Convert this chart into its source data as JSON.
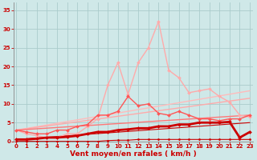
{
  "bg_color": "#cfe8e8",
  "grid_color": "#aacccc",
  "x_label": "Vent moyen/en rafales ( km/h )",
  "x_ticks": [
    0,
    1,
    2,
    3,
    4,
    5,
    6,
    7,
    8,
    9,
    10,
    11,
    12,
    13,
    14,
    15,
    16,
    17,
    18,
    19,
    20,
    21,
    22,
    23
  ],
  "ylim": [
    0,
    37
  ],
  "xlim": [
    -0.3,
    23.3
  ],
  "yticks": [
    0,
    5,
    10,
    15,
    20,
    25,
    30,
    35
  ],
  "tick_color": "#cc0000",
  "label_color": "#cc0000",
  "tick_fontsize": 5.0,
  "label_fontsize": 6.5,
  "series": [
    {
      "x": [
        0,
        1,
        2,
        3,
        4,
        5,
        6,
        7,
        8,
        9,
        10,
        11,
        12,
        13,
        14,
        15,
        16,
        17,
        18,
        19,
        20,
        21,
        22,
        23
      ],
      "y": [
        0.5,
        0.5,
        0.7,
        1,
        1,
        1.2,
        1.5,
        2,
        2.5,
        2.5,
        3,
        3.2,
        3.5,
        3.5,
        4,
        4,
        4.5,
        4.5,
        5,
        5,
        5,
        5.2,
        1,
        2.5
      ],
      "color": "#cc0000",
      "linewidth": 2.0,
      "marker": "D",
      "markersize": 2.0,
      "zorder": 6,
      "linestyle": "-"
    },
    {
      "x": [
        0,
        1,
        2,
        3,
        4,
        5,
        6,
        7,
        8,
        9,
        10,
        11,
        12,
        13,
        14,
        15,
        16,
        17,
        18,
        19,
        20,
        21,
        22,
        23
      ],
      "y": [
        0,
        0,
        0,
        0,
        0,
        0,
        0,
        0,
        0,
        0.2,
        0.3,
        0.3,
        0.5,
        0.5,
        0.5,
        0.5,
        0.5,
        0.5,
        0.5,
        0.5,
        0.5,
        0.5,
        0.5,
        0.5
      ],
      "color": "#cc0000",
      "linewidth": 0.8,
      "marker": "D",
      "markersize": 1.5,
      "zorder": 5,
      "linestyle": "-"
    },
    {
      "x": [
        0,
        1,
        2,
        3,
        4,
        5,
        6,
        7,
        8,
        9,
        10,
        11,
        12,
        13,
        14,
        15,
        16,
        17,
        18,
        19,
        20,
        21,
        22,
        23
      ],
      "y": [
        3,
        2.5,
        2,
        2,
        3,
        3,
        4,
        4.5,
        7,
        7,
        8,
        12,
        9.5,
        10,
        7.5,
        7,
        8,
        7,
        6,
        6,
        5.5,
        6,
        6,
        7
      ],
      "color": "#ff5555",
      "linewidth": 1.0,
      "marker": "D",
      "markersize": 2.0,
      "zorder": 4,
      "linestyle": "-"
    },
    {
      "x": [
        0,
        1,
        2,
        3,
        4,
        5,
        6,
        7,
        8,
        9,
        10,
        11,
        12,
        13,
        14,
        15,
        16,
        17,
        18,
        19,
        20,
        21,
        22,
        23
      ],
      "y": [
        3,
        2,
        1.5,
        1,
        1,
        2,
        2,
        4,
        6,
        15,
        21,
        12.5,
        21,
        25,
        32,
        19,
        17,
        13,
        13.5,
        14,
        12,
        10.5,
        7,
        6.5
      ],
      "color": "#ffaaaa",
      "linewidth": 1.0,
      "marker": "D",
      "markersize": 2.0,
      "zorder": 3,
      "linestyle": "-"
    },
    {
      "x": [
        0,
        23
      ],
      "y": [
        3.0,
        13.5
      ],
      "color": "#ffbbbb",
      "linewidth": 1.0,
      "marker": null,
      "markersize": 0,
      "zorder": 2,
      "linestyle": "-"
    },
    {
      "x": [
        0,
        23
      ],
      "y": [
        3.0,
        11.5
      ],
      "color": "#ffaaaa",
      "linewidth": 1.0,
      "marker": null,
      "markersize": 0,
      "zorder": 2,
      "linestyle": "-"
    },
    {
      "x": [
        0,
        23
      ],
      "y": [
        3.0,
        7.0
      ],
      "color": "#ff7777",
      "linewidth": 1.0,
      "marker": null,
      "markersize": 0,
      "zorder": 2,
      "linestyle": "-"
    },
    {
      "x": [
        0,
        23
      ],
      "y": [
        0.5,
        5.0
      ],
      "color": "#cc0000",
      "linewidth": 0.8,
      "marker": null,
      "markersize": 0,
      "zorder": 2,
      "linestyle": "-"
    }
  ]
}
